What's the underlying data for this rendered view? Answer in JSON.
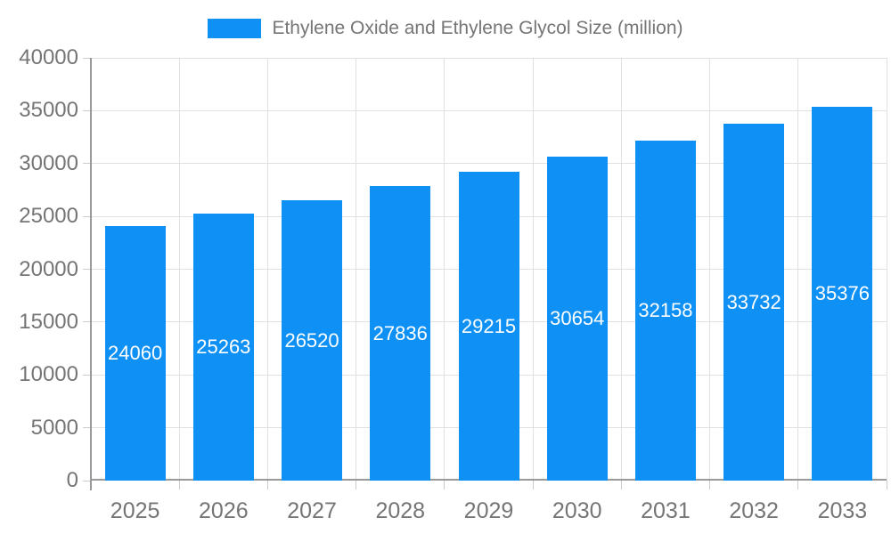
{
  "chart_data": {
    "type": "bar",
    "title": "Ethylene Oxide and Ethylene Glycol Size (million)",
    "categories": [
      "2025",
      "2026",
      "2027",
      "2028",
      "2029",
      "2030",
      "2031",
      "2032",
      "2033"
    ],
    "series": [
      {
        "name": "Ethylene Oxide and Ethylene Glycol Size (million)",
        "values": [
          24060,
          25263,
          26520,
          27836,
          29215,
          30654,
          32158,
          33732,
          35376
        ]
      }
    ],
    "xlabel": "",
    "ylabel": "",
    "ylim": [
      0,
      40000
    ],
    "yticks": [
      0,
      5000,
      10000,
      15000,
      20000,
      25000,
      30000,
      35000,
      40000
    ],
    "grid": true,
    "legend_position": "top",
    "bar_labels_inside": true,
    "colors": {
      "bar": "#0e90f5",
      "bar_label": "#ffffff",
      "axis_text": "#757575",
      "legend_text": "#757575",
      "gridline": "#e0e0e0",
      "axis_line": "#999999",
      "tick": "#cccccc"
    }
  }
}
